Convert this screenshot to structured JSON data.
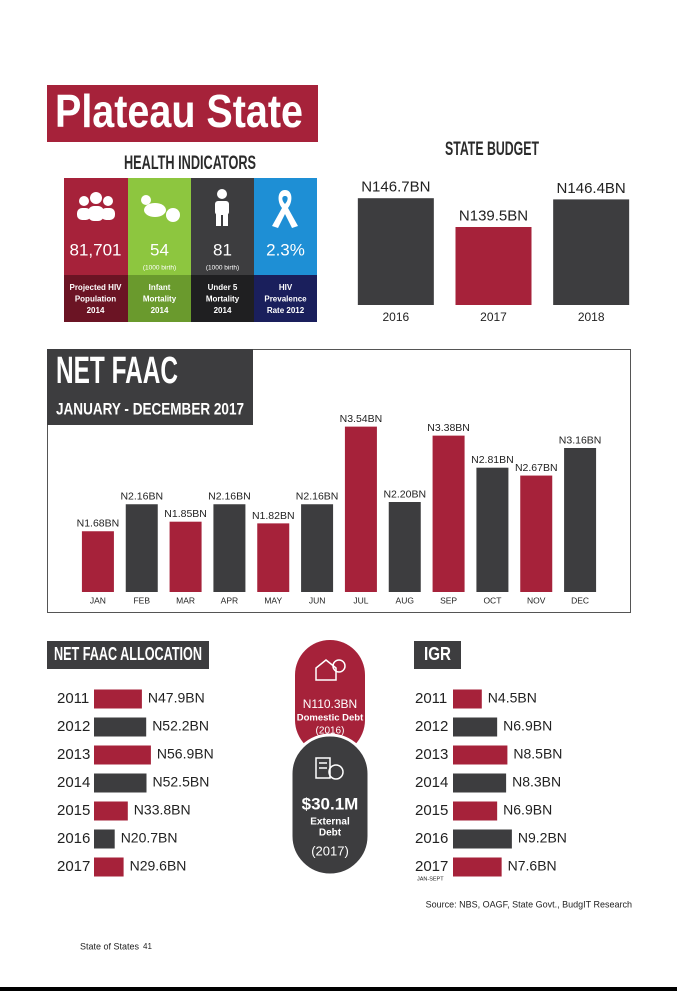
{
  "title": "Plateau State",
  "health_indicators": {
    "heading": "HEALTH INDICATORS",
    "items": [
      {
        "value": "81,701",
        "label": [
          "Projected HIV",
          "Population",
          "2014"
        ]
      },
      {
        "value": "54",
        "unit": "(1000 birth)",
        "label": [
          "Infant",
          "Mortality",
          "2014"
        ]
      },
      {
        "value": "81",
        "unit": "(1000 birth)",
        "label": [
          "Under 5",
          "Mortality",
          "2014"
        ]
      },
      {
        "value": "2.3%",
        "label": [
          "HIV",
          "Prevalence",
          "Rate 2012"
        ]
      }
    ]
  },
  "chart_data": [
    {
      "type": "bar",
      "title": "STATE BUDGET",
      "categories": [
        "2016",
        "2017",
        "2018"
      ],
      "values": [
        146.7,
        139.5,
        146.4
      ],
      "value_labels": [
        "N146.7BN",
        "N139.5BN",
        "N146.4BN"
      ],
      "colors": [
        "#3d3d3f",
        "#a6223a",
        "#3d3d3f"
      ],
      "ylim": [
        120,
        150
      ]
    },
    {
      "type": "bar",
      "title": "NET FAAC",
      "subtitle": "JANUARY - DECEMBER 2017",
      "categories": [
        "JAN",
        "FEB",
        "MAR",
        "APR",
        "MAY",
        "JUN",
        "JUL",
        "AUG",
        "SEP",
        "OCT",
        "NOV",
        "DEC"
      ],
      "values": [
        1.68,
        2.16,
        1.85,
        2.16,
        1.82,
        2.16,
        3.54,
        2.2,
        3.38,
        2.81,
        2.67,
        3.16
      ],
      "value_labels": [
        "N1.68BN",
        "N2.16BN",
        "N1.85BN",
        "N2.16BN",
        "N1.82BN",
        "N2.16BN",
        "N3.54BN",
        "N2.20BN",
        "N3.38BN",
        "N2.81BN",
        "N2.67BN",
        "N3.16BN"
      ],
      "colors": [
        "#a6223a",
        "#3d3d3f",
        "#a6223a",
        "#3d3d3f",
        "#a6223a",
        "#3d3d3f",
        "#a6223a",
        "#3d3d3f",
        "#a6223a",
        "#3d3d3f",
        "#a6223a",
        "#3d3d3f"
      ],
      "ylim": [
        0.6,
        3.8
      ]
    },
    {
      "type": "hbar",
      "title": "NET FAAC ALLOCATION",
      "categories": [
        "2011",
        "2012",
        "2013",
        "2014",
        "2015",
        "2016",
        "2017"
      ],
      "values": [
        47.9,
        52.2,
        56.9,
        52.5,
        33.8,
        20.7,
        29.6
      ],
      "value_labels": [
        "N47.9BN",
        "N52.2BN",
        "N56.9BN",
        "N52.5BN",
        "N33.8BN",
        "N20.7BN",
        "N29.6BN"
      ],
      "colors": [
        "#a6223a",
        "#3d3d3f",
        "#a6223a",
        "#3d3d3f",
        "#a6223a",
        "#3d3d3f",
        "#a6223a"
      ],
      "xlim": [
        0,
        60
      ]
    },
    {
      "type": "hbar",
      "title": "IGR",
      "categories": [
        "2011",
        "2012",
        "2013",
        "2014",
        "2015",
        "2016",
        "2017"
      ],
      "values": [
        4.5,
        6.9,
        8.5,
        8.3,
        6.9,
        9.2,
        7.6
      ],
      "value_labels": [
        "N4.5BN",
        "N6.9BN",
        "N8.5BN",
        "N8.3BN",
        "N6.9BN",
        "N9.2BN",
        "N7.6BN"
      ],
      "colors": [
        "#a6223a",
        "#3d3d3f",
        "#a6223a",
        "#3d3d3f",
        "#a6223a",
        "#3d3d3f",
        "#a6223a"
      ],
      "xlim": [
        0,
        10
      ],
      "note": "JAN-SEPT"
    }
  ],
  "debt": {
    "domestic": {
      "amount": "N110.3BN",
      "label": [
        "Domestic Debt"
      ],
      "year": "(2016)"
    },
    "external": {
      "amount": "$30.1M",
      "label": [
        "External",
        "Debt"
      ],
      "year": "(2017)"
    }
  },
  "source": "Source: NBS, OAGF, State Govt., BudgIT Research",
  "footer": {
    "text": "State of States",
    "page": "41"
  }
}
